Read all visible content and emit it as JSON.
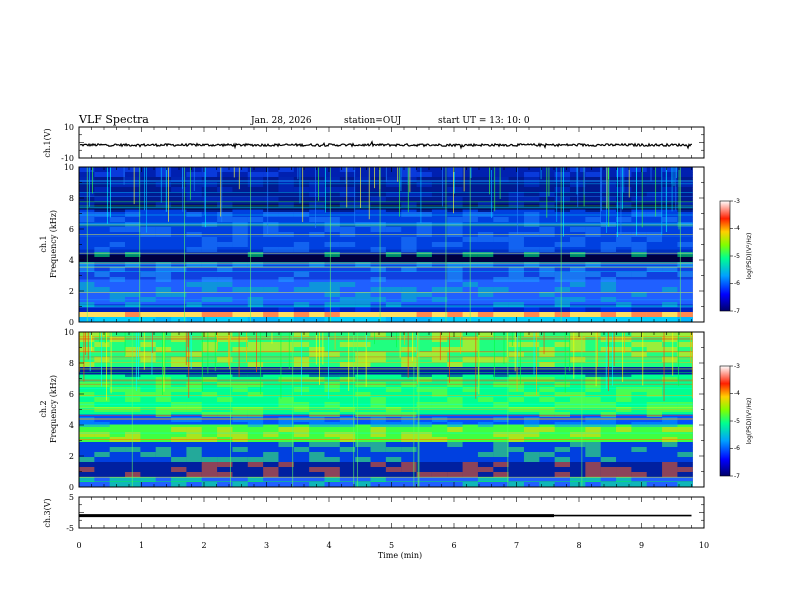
{
  "header": {
    "title": "VLF Spectra",
    "date": "Jan. 28, 2026",
    "station": "station=OUJ",
    "start": "start  UT  =   13: 10: 0"
  },
  "colors": {
    "ink": "#000000",
    "spectrogram_background": "#0a1a6a",
    "colormap": [
      "#0000a0",
      "#0030ff",
      "#00b0ff",
      "#00ff80",
      "#b0ff00",
      "#ffd000",
      "#ff3000",
      "#ffffff"
    ]
  },
  "chart_data": [
    {
      "type": "line",
      "panel": "ch1-waveform",
      "ylabel": "ch.1(V)",
      "ylim": [
        -10,
        10
      ],
      "yticks": [
        "10",
        "-10"
      ],
      "baseline": 0,
      "xlim": [
        0,
        10
      ]
    },
    {
      "type": "heatmap",
      "panel": "ch1-spectrogram",
      "ylabel": "ch.1\nFrequency (kHz)",
      "ylim": [
        0,
        10
      ],
      "yticks": [
        "10",
        "8",
        "6",
        "4",
        "2",
        "0"
      ],
      "xlim": [
        0,
        10
      ],
      "colorbar": {
        "label": "log(PSD)(V²/Hz)",
        "range": [
          -7,
          -3
        ],
        "ticks": [
          "-3",
          "-4",
          "-5",
          "-6",
          "-7"
        ]
      }
    },
    {
      "type": "heatmap",
      "panel": "ch2-spectrogram",
      "ylabel": "ch.2\nFrequency (kHz)",
      "ylim": [
        0,
        10
      ],
      "yticks": [
        "10",
        "8",
        "6",
        "4",
        "2",
        "0"
      ],
      "xlim": [
        0,
        10
      ],
      "colorbar": {
        "label": "log(PSD)(V²/Hz)",
        "range": [
          -7,
          -3
        ],
        "ticks": [
          "-3",
          "-4",
          "-5",
          "-6",
          "-7"
        ]
      }
    },
    {
      "type": "line",
      "panel": "ch3-waveform",
      "ylabel": "ch.3(V)",
      "ylim": [
        -5,
        5
      ],
      "yticks": [
        "5",
        "-5"
      ],
      "baseline": -1,
      "xlim": [
        0,
        10
      ],
      "xlabel": "Time (min)",
      "xticks": [
        "0",
        "1",
        "2",
        "3",
        "4",
        "5",
        "6",
        "7",
        "8",
        "9",
        "10"
      ]
    }
  ],
  "labels": {
    "ch1_wave": "ch.1(V)",
    "ch1_name": "ch.1",
    "ch2_name": "ch.2",
    "freq": "Frequency (kHz)",
    "ch3_wave": "ch.3(V)",
    "xlabel": "Time (min)",
    "cb1": "log(PSD)(V²/Hz)",
    "cb2": "log(PSD)(V²/Hz)"
  }
}
